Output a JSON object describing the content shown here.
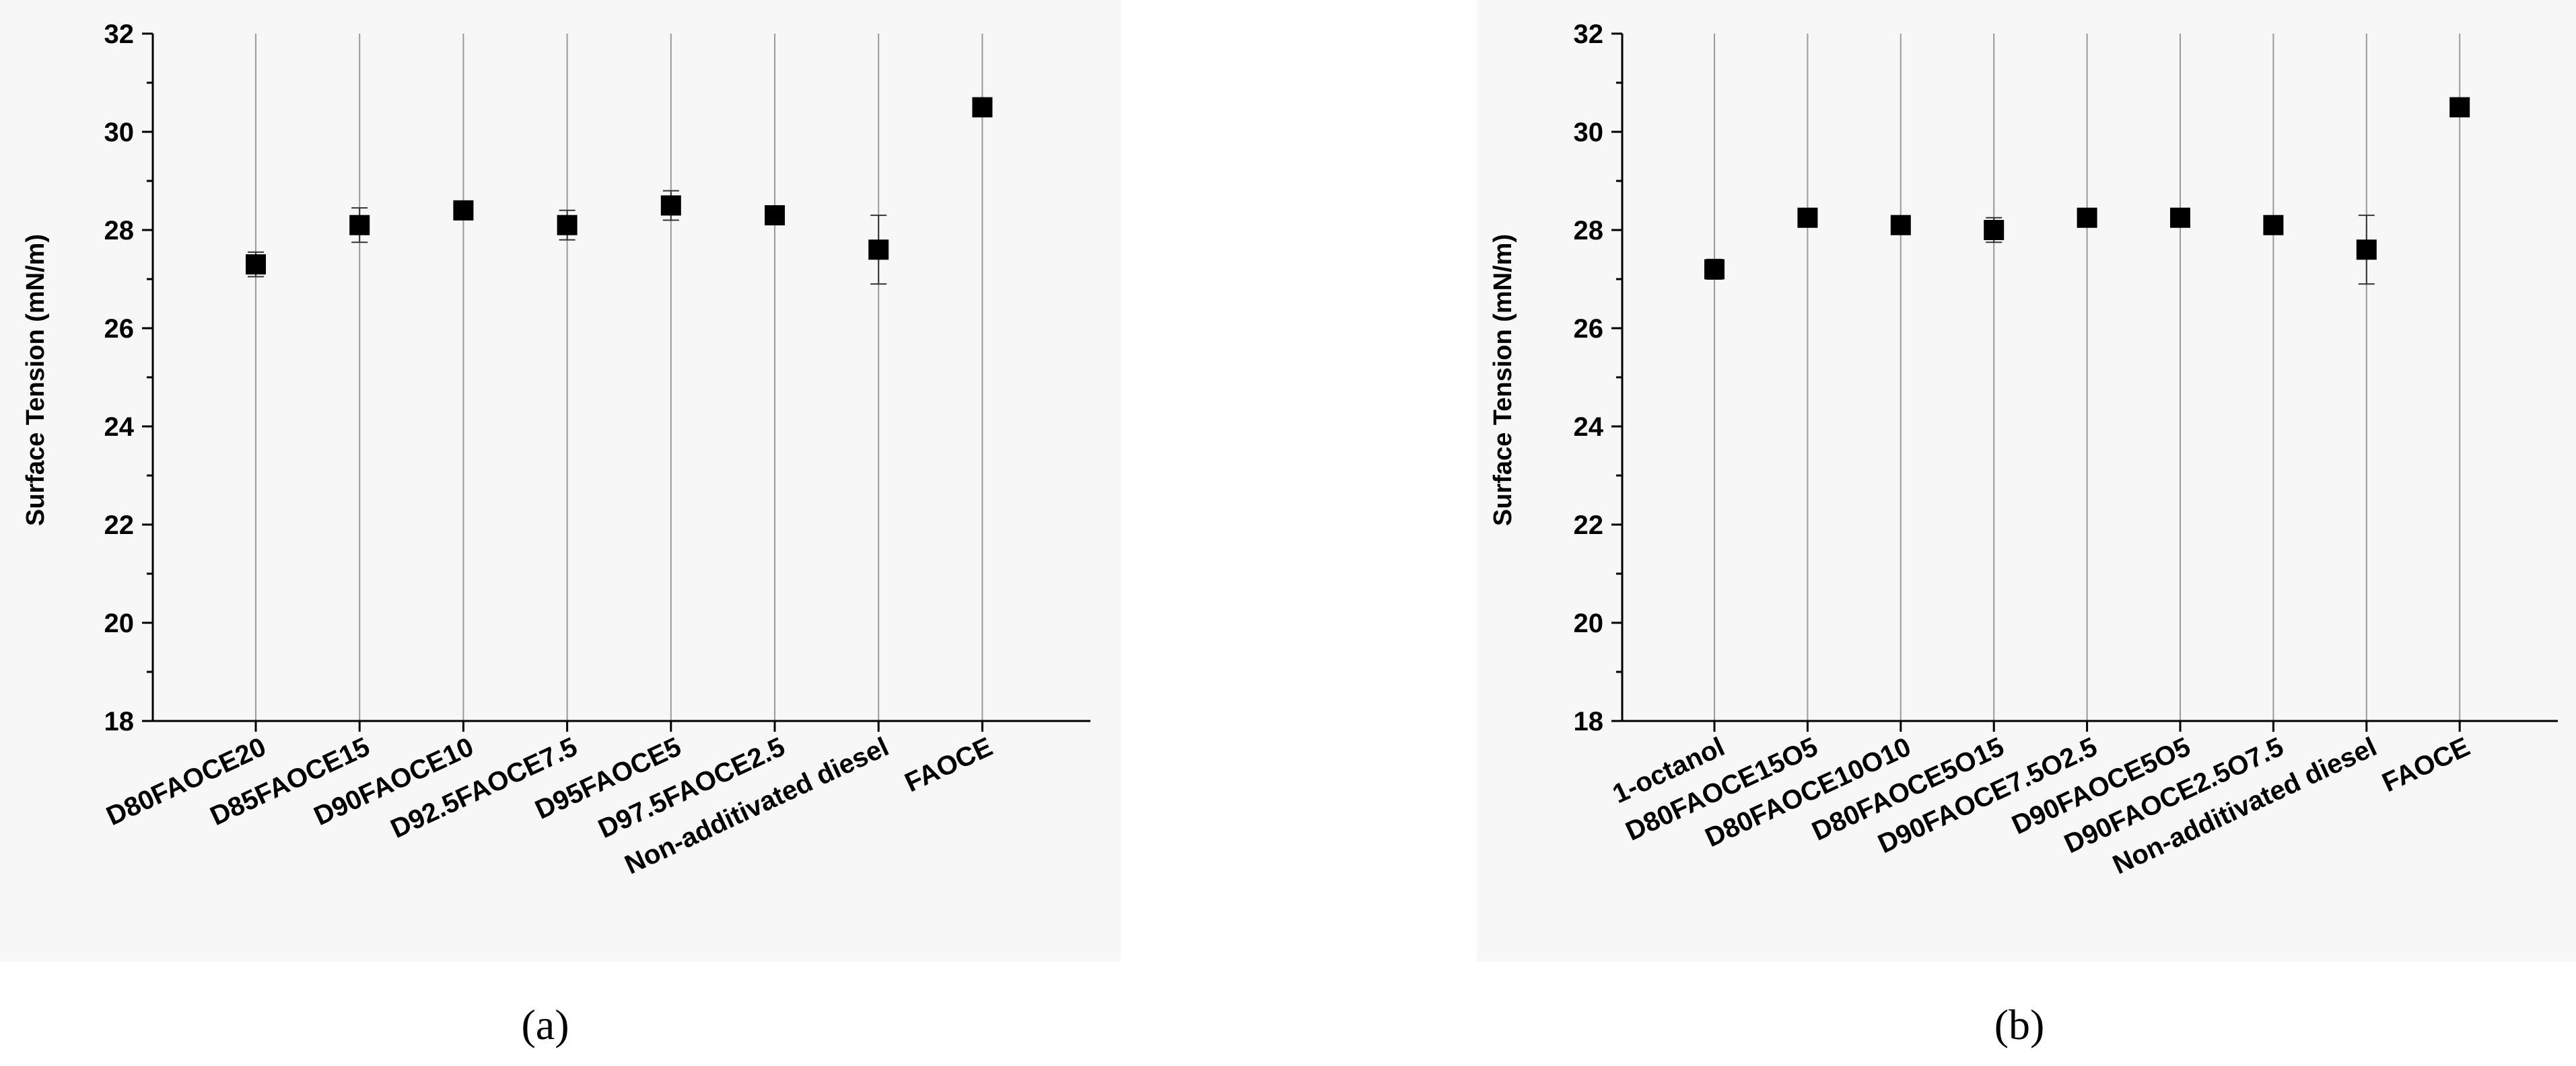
{
  "chart_data": [
    {
      "type": "scatter",
      "panel_label": "(a)",
      "ylabel": "Surface Tension (mN/m)",
      "xlabel": "",
      "ylim": [
        18,
        32
      ],
      "yticks": [
        "18",
        "20",
        "22",
        "24",
        "26",
        "28",
        "30",
        "32"
      ],
      "grid": "vertical",
      "categories": [
        "D80FAOCE20",
        "D85FAOCE15",
        "D90FAOCE10",
        "D92.5FAOCE7.5",
        "D95FAOCE5",
        "D97.5FAOCE2.5",
        "Non-additivated diesel",
        "FAOCE"
      ],
      "series": [
        {
          "values": [
            27.3,
            28.1,
            28.4,
            28.1,
            28.5,
            28.3,
            27.6,
            30.5
          ],
          "errors": [
            0.25,
            0.35,
            0.15,
            0.3,
            0.3,
            0.1,
            0.7,
            0.05
          ]
        }
      ]
    },
    {
      "type": "scatter",
      "panel_label": "(b)",
      "ylabel": "Surface Tension (mN/m)",
      "xlabel": "",
      "ylim": [
        18,
        32
      ],
      "yticks": [
        "18",
        "20",
        "22",
        "24",
        "26",
        "28",
        "30",
        "32"
      ],
      "grid": "vertical",
      "categories": [
        "1-octanol",
        "D80FAOCE15O5",
        "D80FAOCE10O10",
        "D80FAOCE5O15",
        "D90FAOCE7.5O2.5",
        "D90FAOCE5O5",
        "D90FAOCE2.5O7.5",
        "Non-additivated diesel",
        "FAOCE"
      ],
      "series": [
        {
          "values": [
            27.2,
            28.25,
            28.1,
            28.0,
            28.25,
            28.25,
            28.1,
            27.6,
            30.5
          ],
          "errors": [
            0.2,
            0.1,
            0.1,
            0.25,
            0.05,
            0.05,
            0.15,
            0.7,
            0.05
          ]
        }
      ]
    }
  ]
}
